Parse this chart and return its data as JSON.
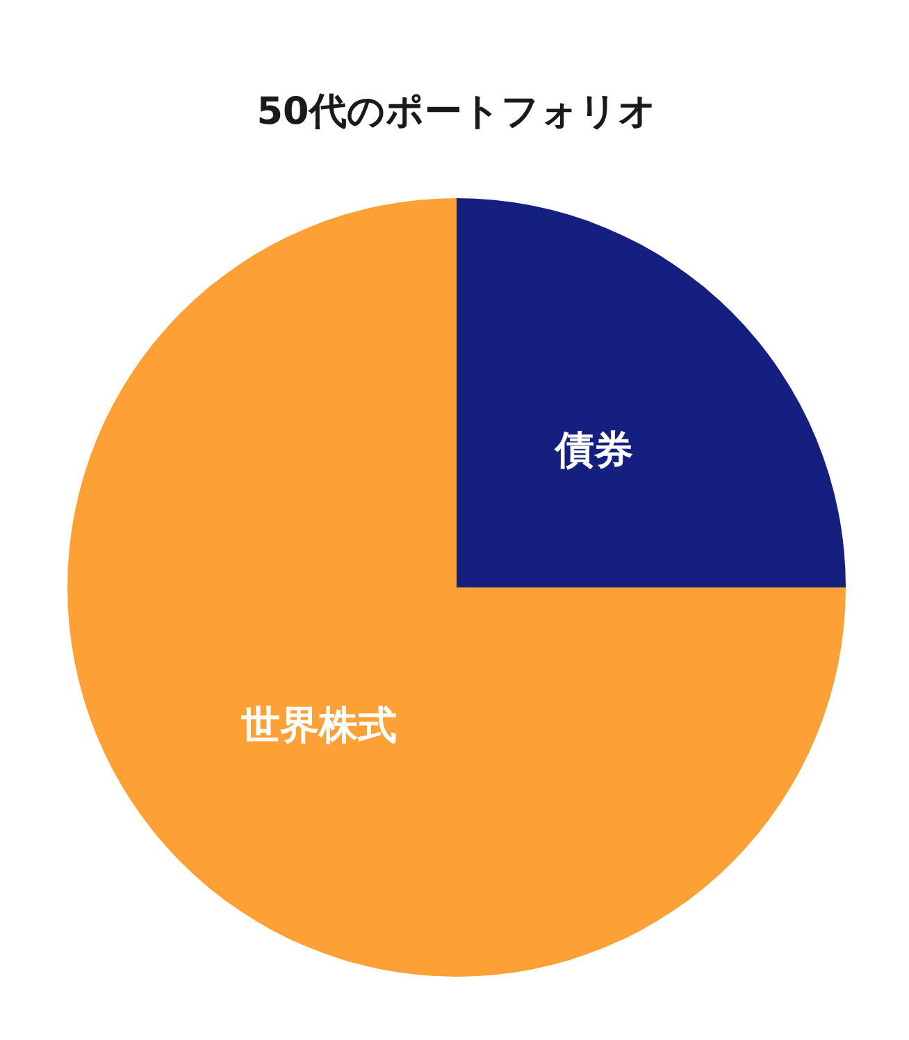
{
  "chart_data": {
    "type": "pie",
    "title": "50代のポートフォリオ",
    "categories": [
      "債券",
      "世界株式"
    ],
    "values": [
      25,
      75
    ],
    "colors": [
      "#151f80",
      "#fda035"
    ]
  }
}
